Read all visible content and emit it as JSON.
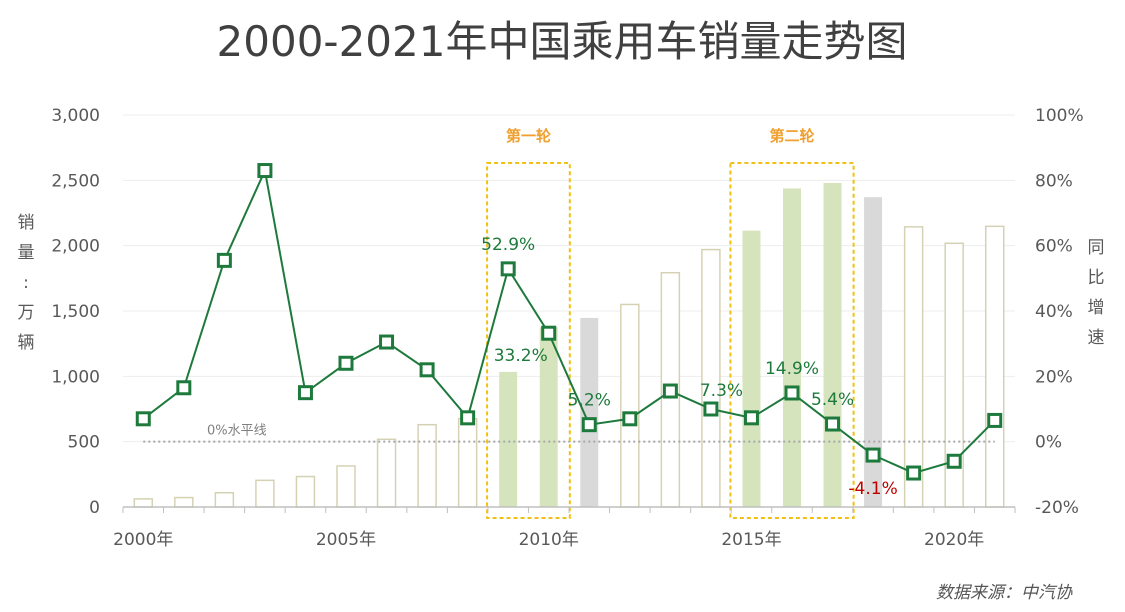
{
  "colors": {
    "line": "#1E7A3C",
    "bar_outline": "#D5D2B4",
    "bar_highlight": "#D6E4BE",
    "bar_gray": "#D9D9D9",
    "box": "#F2C012",
    "label_green": "#1E7A3C",
    "label_red": "#C00000",
    "zero_line": "#A6A6A6",
    "grid": "#EDEDED"
  },
  "chart_data": {
    "type": "bar+line",
    "title": "2000-2021年中国乘用车销量走势图",
    "ylabel_left": "销量：万辆",
    "ylabel_left_chars": [
      "销",
      "量",
      ":",
      "万",
      "辆"
    ],
    "ylabel_right": "同比增速",
    "ylabel_right_chars": [
      "同",
      "比",
      "增",
      "速"
    ],
    "years": [
      2000,
      2001,
      2002,
      2003,
      2004,
      2005,
      2006,
      2007,
      2008,
      2009,
      2010,
      2011,
      2012,
      2013,
      2014,
      2015,
      2016,
      2017,
      2018,
      2019,
      2020,
      2021
    ],
    "x_tick_labels": [
      "2000年",
      "2005年",
      "2010年",
      "2015年",
      "2020年"
    ],
    "left_axis": {
      "min": 0,
      "max": 3000,
      "ticks": [
        "0",
        "500",
        "1,000",
        "1,500",
        "2,000",
        "2,500",
        "3,000"
      ]
    },
    "right_axis": {
      "min": -20,
      "max": 100,
      "ticks": [
        "-20%",
        "0%",
        "20%",
        "40%",
        "60%",
        "80%",
        "100%"
      ]
    },
    "sales": [
      62,
      72,
      109,
      204,
      233,
      314,
      518,
      630,
      676,
      1034,
      1376,
      1447,
      1550,
      1793,
      1970,
      2115,
      2438,
      2480,
      2371,
      2144,
      2018,
      2148
    ],
    "bar_styles": [
      "outline",
      "outline",
      "outline",
      "outline",
      "outline",
      "outline",
      "outline",
      "outline",
      "outline",
      "highlight",
      "highlight",
      "gray",
      "outline",
      "outline",
      "outline",
      "highlight",
      "highlight",
      "highlight",
      "gray",
      "outline",
      "outline",
      "outline"
    ],
    "growth": [
      7,
      16.5,
      55.5,
      83,
      15,
      24,
      30.5,
      22,
      7.3,
      52.9,
      33.2,
      5.2,
      7,
      15.5,
      10,
      7.3,
      14.9,
      5.4,
      -4.1,
      -9.6,
      -6,
      6.5
    ],
    "value_labels": [
      {
        "index": 9,
        "text": "52.9%",
        "color": "green",
        "pos": "above"
      },
      {
        "index": 10,
        "text": "33.2%",
        "color": "green",
        "pos": "below-left"
      },
      {
        "index": 11,
        "text": "5.2%",
        "color": "green",
        "pos": "above"
      },
      {
        "index": 15,
        "text": "7.3%",
        "color": "green",
        "pos": "left"
      },
      {
        "index": 16,
        "text": "14.9%",
        "color": "green",
        "pos": "above"
      },
      {
        "index": 17,
        "text": "5.4%",
        "color": "green",
        "pos": "above"
      },
      {
        "index": 18,
        "text": "-4.1%",
        "color": "red",
        "pos": "below"
      }
    ],
    "rounds": [
      {
        "label": "第一轮",
        "start_index": 9,
        "end_index": 10
      },
      {
        "label": "第二轮",
        "start_index": 15,
        "end_index": 17
      }
    ],
    "zero_line_label": "0%水平线",
    "source": "数据来源：中汽协"
  }
}
